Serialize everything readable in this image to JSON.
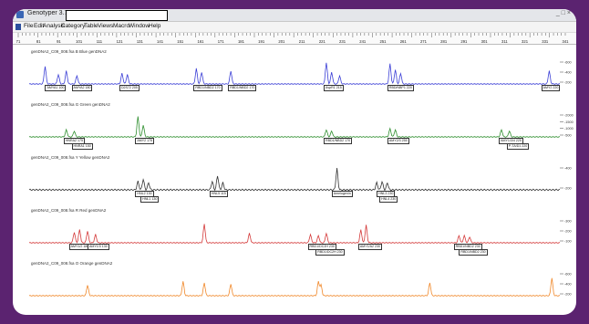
{
  "window": {
    "title": "Genotyper 3.7",
    "controls": "_ □ ×"
  },
  "menu": [
    "File",
    "Edit",
    "Analysis",
    "Category",
    "Table",
    "Views",
    "Macro",
    "Window",
    "Help"
  ],
  "ruler_ticks": [
    "71",
    "81",
    "91",
    "101",
    "111",
    "121",
    "131",
    "141",
    "151",
    "161",
    "171",
    "181",
    "191",
    "201",
    "211",
    "221",
    "231",
    "241",
    "251",
    "261",
    "271",
    "281",
    "291",
    "301",
    "311",
    "321",
    "331",
    "341"
  ],
  "panels": [
    {
      "label": "genDNA2_C09_008.fsa   B Blue   genDNA2",
      "color": "#3b3fd6",
      "yticks": [
        "600",
        "400",
        "200"
      ],
      "peaks": [
        {
          "x": 0.03,
          "h": 0.75
        },
        {
          "x": 0.055,
          "h": 0.4
        },
        {
          "x": 0.07,
          "h": 0.55
        },
        {
          "x": 0.09,
          "h": 0.35
        },
        {
          "x": 0.175,
          "h": 0.45
        },
        {
          "x": 0.185,
          "h": 0.4
        },
        {
          "x": 0.315,
          "h": 0.65
        },
        {
          "x": 0.325,
          "h": 0.5
        },
        {
          "x": 0.38,
          "h": 0.55
        },
        {
          "x": 0.56,
          "h": 0.9
        },
        {
          "x": 0.57,
          "h": 0.5
        },
        {
          "x": 0.585,
          "h": 0.35
        },
        {
          "x": 0.68,
          "h": 0.85
        },
        {
          "x": 0.69,
          "h": 0.6
        },
        {
          "x": 0.7,
          "h": 0.45
        },
        {
          "x": 0.98,
          "h": 0.55
        }
      ],
      "labels": [
        {
          "text": "AMYA1 100",
          "x": 0.03
        },
        {
          "text": "AMYA2 180",
          "x": 0.08
        },
        {
          "text": "D2S72 205",
          "x": 0.17
        },
        {
          "text": "RBD1/NBD2 170",
          "x": 0.31
        },
        {
          "text": "RBD1/NBD2 170",
          "x": 0.375
        },
        {
          "text": "AvpR1 215",
          "x": 0.555
        },
        {
          "text": "RBD/NBP1 220",
          "x": 0.675
        },
        {
          "text": "AMY2 220",
          "x": 0.965
        }
      ]
    },
    {
      "label": "genDNA2_C09_008.fsa   G Green   genDNA2",
      "color": "#2f8f2f",
      "yticks": [
        "2000",
        "1500",
        "1000",
        "500"
      ],
      "peaks": [
        {
          "x": 0.07,
          "h": 0.3
        },
        {
          "x": 0.085,
          "h": 0.25
        },
        {
          "x": 0.205,
          "h": 0.85
        },
        {
          "x": 0.215,
          "h": 0.5
        },
        {
          "x": 0.56,
          "h": 0.3
        },
        {
          "x": 0.57,
          "h": 0.25
        },
        {
          "x": 0.68,
          "h": 0.35
        },
        {
          "x": 0.69,
          "h": 0.3
        },
        {
          "x": 0.89,
          "h": 0.3
        },
        {
          "x": 0.905,
          "h": 0.25
        }
      ],
      "labels": [
        {
          "text": "HNRA2 175",
          "x": 0.065
        },
        {
          "text": "HNRA1 150",
          "x": 0.08,
          "row": 2
        },
        {
          "text": "AMY2 175",
          "x": 0.2
        },
        {
          "text": "RBD1/NBD2 170",
          "x": 0.555
        },
        {
          "text": "AMY2/3 255",
          "x": 0.675
        },
        {
          "text": "AMY1/3/4 225",
          "x": 0.885
        },
        {
          "text": "P-TA/D1 220",
          "x": 0.9,
          "row": 2
        }
      ]
    },
    {
      "label": "genDNA2_C09_008.fsa   Y Yellow   genDNA2",
      "color": "#333333",
      "yticks": [
        "400",
        "200"
      ],
      "peaks": [
        {
          "x": 0.205,
          "h": 0.35
        },
        {
          "x": 0.215,
          "h": 0.45
        },
        {
          "x": 0.225,
          "h": 0.3
        },
        {
          "x": 0.345,
          "h": 0.35
        },
        {
          "x": 0.355,
          "h": 0.6
        },
        {
          "x": 0.365,
          "h": 0.3
        },
        {
          "x": 0.58,
          "h": 0.9
        },
        {
          "x": 0.655,
          "h": 0.3
        },
        {
          "x": 0.665,
          "h": 0.35
        },
        {
          "x": 0.675,
          "h": 0.3
        }
      ],
      "labels": [
        {
          "text": "HNL2 130",
          "x": 0.2
        },
        {
          "text": "HNL1 130",
          "x": 0.21,
          "row": 2
        },
        {
          "text": "HNL5 115",
          "x": 0.34
        },
        {
          "text": "Amelogenin",
          "x": 0.57
        },
        {
          "text": "HNL3 230",
          "x": 0.655
        },
        {
          "text": "HNL4 230",
          "x": 0.66,
          "row": 2
        }
      ]
    },
    {
      "label": "genDNA2_C09_008.fsa   R Red   genDNA2",
      "color": "#d43a3a",
      "yticks": [
        "300",
        "200",
        "100"
      ],
      "peaks": [
        {
          "x": 0.085,
          "h": 0.45
        },
        {
          "x": 0.095,
          "h": 0.55
        },
        {
          "x": 0.11,
          "h": 0.5
        },
        {
          "x": 0.125,
          "h": 0.35
        },
        {
          "x": 0.33,
          "h": 0.8
        },
        {
          "x": 0.415,
          "h": 0.4
        },
        {
          "x": 0.53,
          "h": 0.35
        },
        {
          "x": 0.545,
          "h": 0.3
        },
        {
          "x": 0.56,
          "h": 0.4
        },
        {
          "x": 0.625,
          "h": 0.55
        },
        {
          "x": 0.635,
          "h": 0.75
        },
        {
          "x": 0.81,
          "h": 0.3
        },
        {
          "x": 0.82,
          "h": 0.3
        },
        {
          "x": 0.83,
          "h": 0.25
        }
      ],
      "labels": [
        {
          "text": "AMY1/2 180",
          "x": 0.075
        },
        {
          "text": "AMY1/3 130",
          "x": 0.11
        },
        {
          "text": "RBD1/DC2H 230",
          "x": 0.525
        },
        {
          "text": "RBD1/DC2H 230",
          "x": 0.54,
          "row": 2
        },
        {
          "text": "AMY1/A2 230",
          "x": 0.62
        },
        {
          "text": "RBD1/NBD2 230",
          "x": 0.8
        },
        {
          "text": "RBD1/NBD2 230",
          "x": 0.81,
          "row": 2
        }
      ]
    },
    {
      "label": "genDNA2_C09_008.fsa   O Orange   genDNA2",
      "color": "#f0882a",
      "yticks": [
        "600",
        "400",
        "200"
      ],
      "peaks": [
        {
          "x": 0.11,
          "h": 0.45
        },
        {
          "x": 0.29,
          "h": 0.6
        },
        {
          "x": 0.33,
          "h": 0.55
        },
        {
          "x": 0.38,
          "h": 0.5
        },
        {
          "x": 0.545,
          "h": 0.6
        },
        {
          "x": 0.55,
          "h": 0.45
        },
        {
          "x": 0.755,
          "h": 0.55
        },
        {
          "x": 0.985,
          "h": 0.75
        }
      ],
      "labels": []
    }
  ]
}
